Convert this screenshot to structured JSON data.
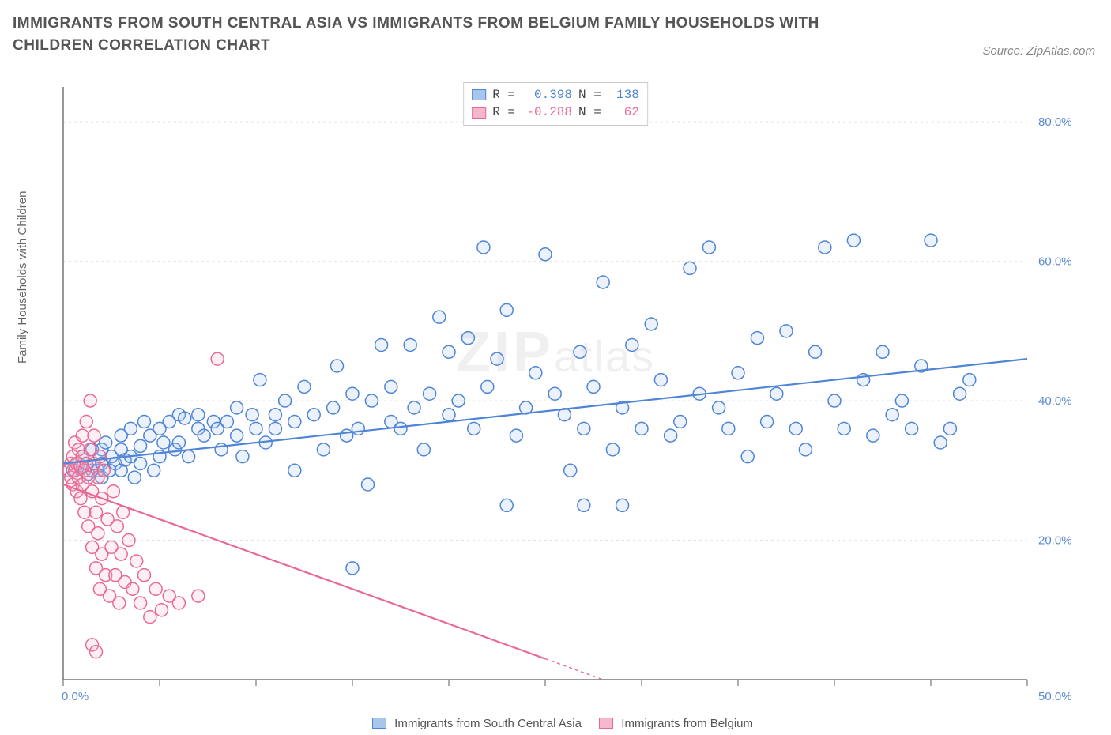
{
  "title": "IMMIGRANTS FROM SOUTH CENTRAL ASIA VS IMMIGRANTS FROM BELGIUM FAMILY HOUSEHOLDS WITH CHILDREN CORRELATION CHART",
  "source": "Source: ZipAtlas.com",
  "ylabel": "Family Households with Children",
  "watermark_a": "ZIP",
  "watermark_b": "atlas",
  "chart": {
    "type": "scatter",
    "xlim": [
      0,
      50
    ],
    "ylim": [
      0,
      85
    ],
    "xtick_step": 5,
    "ytick_step": 20,
    "ytick_start": 20,
    "xlabel_min": "0.0%",
    "xlabel_max": "50.0%",
    "ytick_labels": [
      "20.0%",
      "40.0%",
      "60.0%",
      "80.0%"
    ],
    "background": "#ffffff",
    "grid_color": "#e3e3e3",
    "axis_color": "#777777",
    "xtick_label_color": "#5b8bd4",
    "ytick_label_color": "#5b8bd4",
    "marker_radius": 8,
    "marker_stroke_width": 1.5,
    "marker_fill_opacity": 0.22,
    "regression_line_width": 2.2,
    "regression_dash_outside": "4 4"
  },
  "series": [
    {
      "key": "blue",
      "label": "Immigrants from South Central Asia",
      "R": "0.398",
      "N": "138",
      "color": "#4f85d6",
      "fill": "#a8c6ec",
      "stroke": "#4f85d6",
      "reg": {
        "x1": 0,
        "y1": 31,
        "x2": 50,
        "y2": 46
      },
      "points": [
        [
          0.5,
          30
        ],
        [
          0.8,
          31
        ],
        [
          1,
          30.5
        ],
        [
          1,
          32
        ],
        [
          1.2,
          31
        ],
        [
          1.3,
          29.5
        ],
        [
          1.5,
          30
        ],
        [
          1.5,
          33
        ],
        [
          1.6,
          31
        ],
        [
          1.8,
          30
        ],
        [
          2,
          31
        ],
        [
          2,
          33
        ],
        [
          2,
          29
        ],
        [
          2.2,
          34
        ],
        [
          2.4,
          30
        ],
        [
          2.5,
          32
        ],
        [
          2.7,
          31
        ],
        [
          3,
          33
        ],
        [
          3,
          30
        ],
        [
          3,
          35
        ],
        [
          3.2,
          31.5
        ],
        [
          3.5,
          32
        ],
        [
          3.5,
          36
        ],
        [
          3.7,
          29
        ],
        [
          4,
          33.5
        ],
        [
          4,
          31
        ],
        [
          4.2,
          37
        ],
        [
          4.5,
          35
        ],
        [
          4.7,
          30
        ],
        [
          5,
          36
        ],
        [
          5,
          32
        ],
        [
          5.2,
          34
        ],
        [
          5.5,
          37
        ],
        [
          5.8,
          33
        ],
        [
          6,
          38
        ],
        [
          6,
          34
        ],
        [
          6.3,
          37.5
        ],
        [
          6.5,
          32
        ],
        [
          7,
          36
        ],
        [
          7,
          38
        ],
        [
          7.3,
          35
        ],
        [
          7.8,
          37
        ],
        [
          8,
          36
        ],
        [
          8.2,
          33
        ],
        [
          8.5,
          37
        ],
        [
          9,
          35
        ],
        [
          9,
          39
        ],
        [
          9.3,
          32
        ],
        [
          9.8,
          38
        ],
        [
          10,
          36
        ],
        [
          10.2,
          43
        ],
        [
          10.5,
          34
        ],
        [
          11,
          38
        ],
        [
          11,
          36
        ],
        [
          11.5,
          40
        ],
        [
          12,
          30
        ],
        [
          12,
          37
        ],
        [
          12.5,
          42
        ],
        [
          13,
          38
        ],
        [
          13.5,
          33
        ],
        [
          14,
          39
        ],
        [
          14.2,
          45
        ],
        [
          14.7,
          35
        ],
        [
          15,
          41
        ],
        [
          15.3,
          36
        ],
        [
          15.8,
          28
        ],
        [
          16,
          40
        ],
        [
          16.5,
          48
        ],
        [
          17,
          42
        ],
        [
          17,
          37
        ],
        [
          17.5,
          36
        ],
        [
          18,
          48
        ],
        [
          18.2,
          39
        ],
        [
          18.7,
          33
        ],
        [
          19,
          41
        ],
        [
          19.5,
          52
        ],
        [
          20,
          47
        ],
        [
          20,
          38
        ],
        [
          20.5,
          40
        ],
        [
          21,
          49
        ],
        [
          21.3,
          36
        ],
        [
          21.8,
          62
        ],
        [
          22,
          42
        ],
        [
          22.5,
          46
        ],
        [
          23,
          53
        ],
        [
          23.5,
          35
        ],
        [
          24,
          39
        ],
        [
          24.5,
          44
        ],
        [
          25,
          61
        ],
        [
          25.5,
          41
        ],
        [
          26,
          38
        ],
        [
          26.3,
          30
        ],
        [
          26.8,
          47
        ],
        [
          27,
          36
        ],
        [
          27.5,
          42
        ],
        [
          28,
          57
        ],
        [
          28.5,
          33
        ],
        [
          29,
          39
        ],
        [
          29.5,
          48
        ],
        [
          30,
          36
        ],
        [
          30.5,
          51
        ],
        [
          31,
          43
        ],
        [
          31.5,
          35
        ],
        [
          32,
          37
        ],
        [
          32.5,
          59
        ],
        [
          33,
          41
        ],
        [
          33.5,
          62
        ],
        [
          34,
          39
        ],
        [
          34.5,
          36
        ],
        [
          35,
          44
        ],
        [
          35.5,
          32
        ],
        [
          36,
          49
        ],
        [
          36.5,
          37
        ],
        [
          37,
          41
        ],
        [
          37.5,
          50
        ],
        [
          38,
          36
        ],
        [
          38.5,
          33
        ],
        [
          39,
          47
        ],
        [
          39.5,
          62
        ],
        [
          40,
          40
        ],
        [
          40.5,
          36
        ],
        [
          41,
          63
        ],
        [
          41.5,
          43
        ],
        [
          42,
          35
        ],
        [
          42.5,
          47
        ],
        [
          43,
          38
        ],
        [
          43.5,
          40
        ],
        [
          44,
          36
        ],
        [
          44.5,
          45
        ],
        [
          45,
          63
        ],
        [
          45.5,
          34
        ],
        [
          46,
          36
        ],
        [
          46.5,
          41
        ],
        [
          47,
          43
        ],
        [
          15,
          16
        ],
        [
          23,
          25
        ],
        [
          27,
          25
        ],
        [
          29,
          25
        ]
      ]
    },
    {
      "key": "pink",
      "label": "Immigrants from Belgium",
      "R": "-0.288",
      "N": "62",
      "color": "#e86a94",
      "fill": "#f6b7cc",
      "stroke": "#e86a94",
      "reg": {
        "x1": 0,
        "y1": 28,
        "x2": 25,
        "y2": 3
      },
      "points": [
        [
          0.3,
          30
        ],
        [
          0.4,
          29
        ],
        [
          0.4,
          31
        ],
        [
          0.5,
          32
        ],
        [
          0.5,
          28
        ],
        [
          0.6,
          30
        ],
        [
          0.6,
          34
        ],
        [
          0.7,
          31
        ],
        [
          0.7,
          27
        ],
        [
          0.8,
          33
        ],
        [
          0.8,
          29
        ],
        [
          0.9,
          30.5
        ],
        [
          0.9,
          26
        ],
        [
          1,
          32
        ],
        [
          1,
          28
        ],
        [
          1,
          35
        ],
        [
          1.1,
          30
        ],
        [
          1.1,
          24
        ],
        [
          1.2,
          31
        ],
        [
          1.2,
          37
        ],
        [
          1.3,
          29
        ],
        [
          1.3,
          22
        ],
        [
          1.4,
          33
        ],
        [
          1.4,
          40
        ],
        [
          1.5,
          27
        ],
        [
          1.5,
          19
        ],
        [
          1.6,
          31
        ],
        [
          1.6,
          35
        ],
        [
          1.7,
          24
        ],
        [
          1.7,
          16
        ],
        [
          1.8,
          29
        ],
        [
          1.8,
          21
        ],
        [
          1.9,
          32
        ],
        [
          1.9,
          13
        ],
        [
          2,
          26
        ],
        [
          2,
          18
        ],
        [
          2.1,
          30
        ],
        [
          2.2,
          15
        ],
        [
          2.3,
          23
        ],
        [
          2.4,
          12
        ],
        [
          2.5,
          19
        ],
        [
          2.6,
          27
        ],
        [
          2.7,
          15
        ],
        [
          2.8,
          22
        ],
        [
          2.9,
          11
        ],
        [
          3,
          18
        ],
        [
          3.1,
          24
        ],
        [
          3.2,
          14
        ],
        [
          3.4,
          20
        ],
        [
          3.6,
          13
        ],
        [
          3.8,
          17
        ],
        [
          4,
          11
        ],
        [
          4.2,
          15
        ],
        [
          4.5,
          9
        ],
        [
          4.8,
          13
        ],
        [
          5.1,
          10
        ],
        [
          5.5,
          12
        ],
        [
          6,
          11
        ],
        [
          7,
          12
        ],
        [
          8,
          46
        ],
        [
          1.5,
          5
        ],
        [
          1.7,
          4
        ]
      ]
    }
  ],
  "legend": {
    "r_label": "R =",
    "n_label": "N ="
  }
}
